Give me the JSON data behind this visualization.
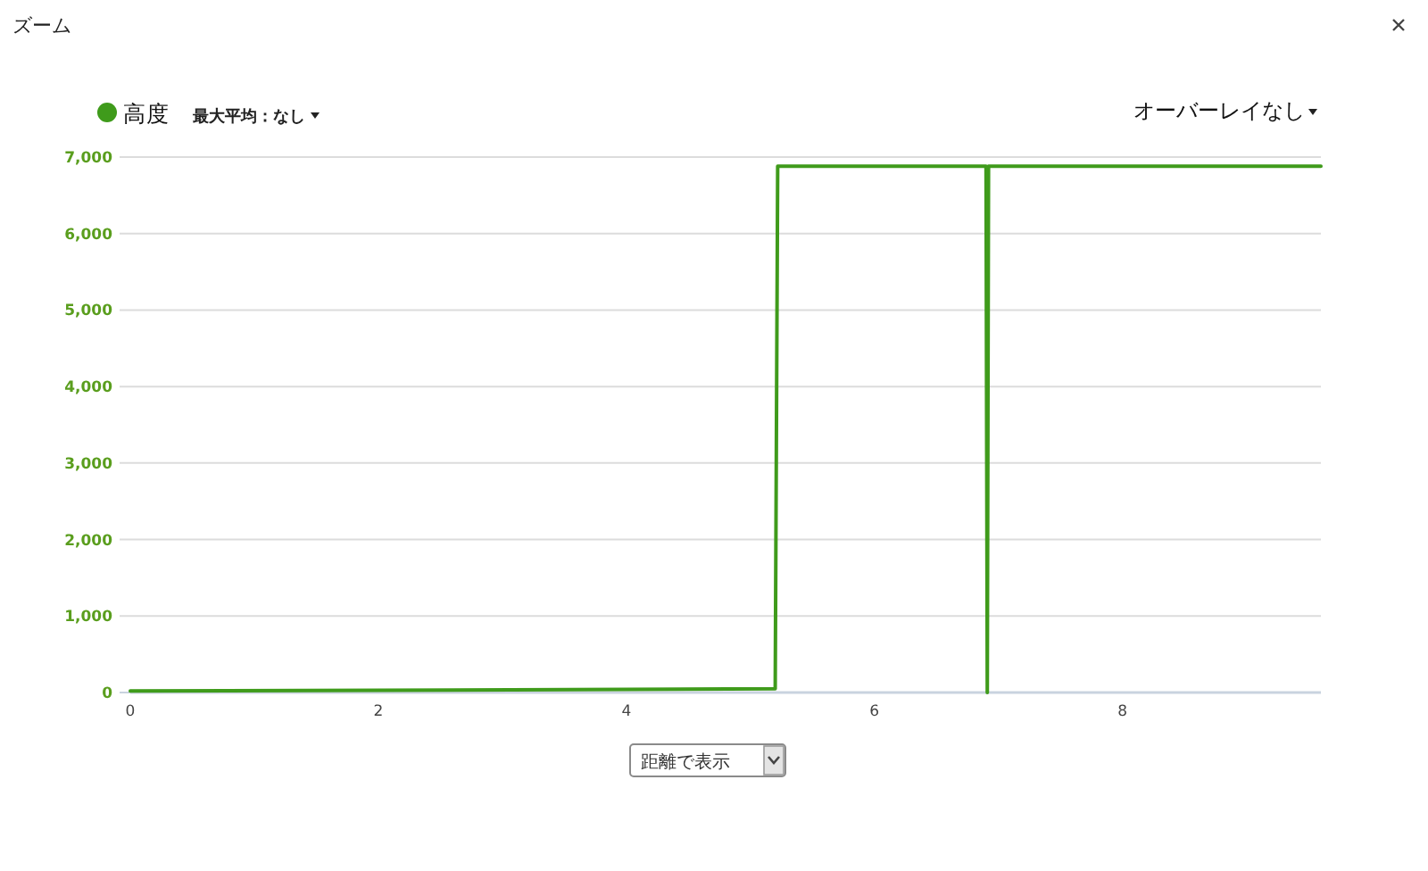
{
  "chart_data": {
    "type": "line",
    "title": "ズーム",
    "xlim": [
      0,
      9.6
    ],
    "xticks": [
      0,
      2,
      4,
      6,
      8
    ],
    "ylim": [
      0,
      7000
    ],
    "yticks": [
      0,
      {
        "value": 1000,
        "label": "1,000"
      },
      {
        "value": 2000,
        "label": "2,000"
      },
      {
        "value": 3000,
        "label": "3,000"
      },
      {
        "value": 4000,
        "label": "4,000"
      },
      {
        "value": 5000,
        "label": "5,000"
      },
      {
        "value": 6000,
        "label": "6,000"
      },
      {
        "value": 7000,
        "label": "7,000"
      }
    ],
    "grid": "y",
    "legend": "top left",
    "series": [
      {
        "name": "高度",
        "color": "#3f9b1b",
        "x": [
          0,
          2,
          4,
          5.2,
          5.22,
          6.9,
          6.91,
          6.92,
          9.6
        ],
        "values": [
          20,
          30,
          40,
          50,
          6880,
          6880,
          0,
          6880,
          6880
        ]
      }
    ],
    "annotations": [
      "最大平均：なし",
      "オーバーレイなし",
      "距離で表示"
    ]
  }
}
